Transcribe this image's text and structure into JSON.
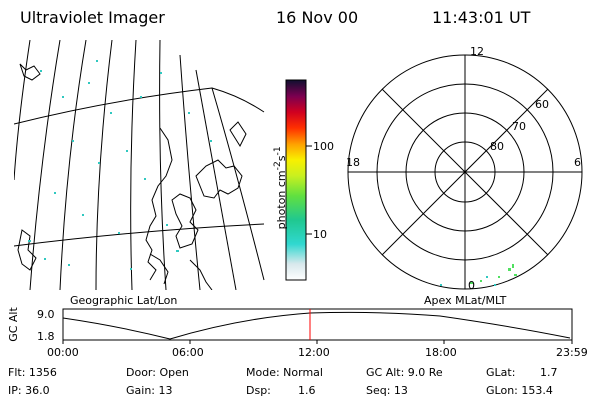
{
  "header": {
    "instrument": "Ultraviolet Imager",
    "date": "16 Nov 00",
    "time": "11:43:01 UT"
  },
  "colorbar": {
    "unit_label": "photon cm",
    "unit_exp1": "-2",
    "unit_s": "s",
    "unit_exp2": "-1",
    "tick_100": "100",
    "tick_10": "10"
  },
  "polar_plot": {
    "label_12": "12",
    "label_18": "18",
    "label_6": "6",
    "label_0": "0",
    "label_60": "60",
    "label_70": "70",
    "label_80": "80"
  },
  "map_labels": {
    "left": "Geographic Lat/Lon",
    "right": "Apex MLat/MLT"
  },
  "timeline": {
    "ylabel": "GC Alt",
    "y_top": "9.0",
    "y_bottom": "1.8",
    "ticks": [
      "00:00",
      "06:00",
      "12:00",
      "18:00",
      "23:59"
    ],
    "marker_time": "11:43",
    "marker_color": "#ff0000"
  },
  "status": {
    "flt": "Flt: 1356",
    "ip": "IP: 36.0",
    "door": "Door: Open",
    "gain": "Gain: 13",
    "mode": "Mode: Normal",
    "dsp": "Dsp:",
    "dsp_val": "1.6",
    "gcalt": "GC Alt: 9.0 Re",
    "seq": "Seq: 13",
    "glat": "GLat:",
    "glat_val": "1.7",
    "glon": "GLon: 153.4"
  }
}
